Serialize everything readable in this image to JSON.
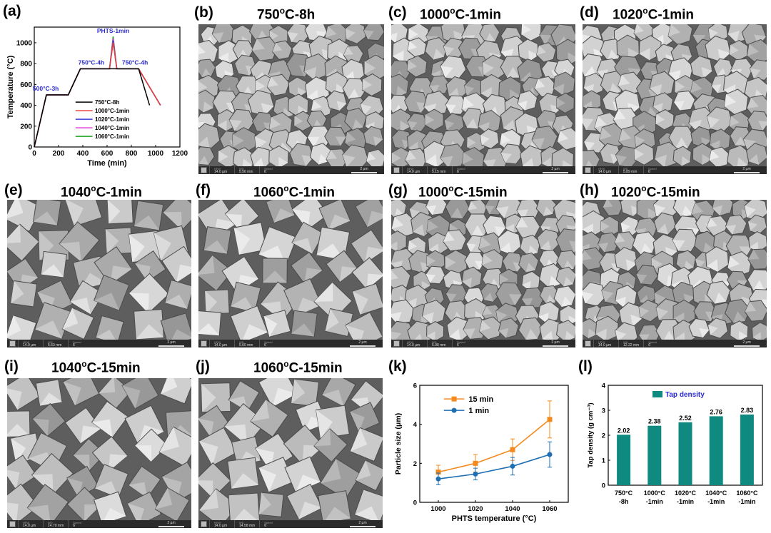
{
  "panels": {
    "a": {
      "label": "(a)"
    },
    "b": {
      "label": "(b)",
      "title": "750",
      "title_sup": "o",
      "title_rest": "C-8h"
    },
    "c": {
      "label": "(c)",
      "title": "1000",
      "title_sup": "o",
      "title_rest": "C-1min"
    },
    "d": {
      "label": "(d)",
      "title": "1020",
      "title_sup": "o",
      "title_rest": "C-1min"
    },
    "e": {
      "label": "(e)",
      "title": "1040",
      "title_sup": "o",
      "title_rest": "C-1min"
    },
    "f": {
      "label": "(f)",
      "title": "1060",
      "title_sup": "o",
      "title_rest": "C-1min"
    },
    "g": {
      "label": "(g)",
      "title": "1000",
      "title_sup": "o",
      "title_rest": "C-15min"
    },
    "h": {
      "label": "(h)",
      "title": "1020",
      "title_sup": "o",
      "title_rest": "C-15min"
    },
    "i": {
      "label": "(i)",
      "title": "1040",
      "title_sup": "o",
      "title_rest": "C-15min"
    },
    "j": {
      "label": "(j)",
      "title": "1060",
      "title_sup": "o",
      "title_rest": "C-15min"
    },
    "k": {
      "label": "(k)"
    },
    "l": {
      "label": "(l)"
    }
  },
  "sem_infobar": {
    "b": {
      "hfw": "14.0 µm",
      "wd": "5.56 mm",
      "speed": "6",
      "scale": "2 µm"
    },
    "c": {
      "hfw": "14.0 µm",
      "wd": "5.15 mm",
      "speed": "6",
      "scale": "2 µm"
    },
    "d": {
      "hfw": "14.0 µm",
      "wd": "5.89 mm",
      "speed": "6",
      "scale": "2 µm"
    },
    "e": {
      "hfw": "14.0 µm",
      "wd": "5.63 mm",
      "speed": "6",
      "scale": "2 µm"
    },
    "f": {
      "hfw": "14.0 µm",
      "wd": "5.60 mm",
      "speed": "6",
      "scale": "2 µm"
    },
    "g": {
      "hfw": "14.0 µm",
      "wd": "5.98 mm",
      "speed": "6",
      "scale": "2 µm"
    },
    "h": {
      "hfw": "14.0 µm",
      "wd": "12.22 mm",
      "speed": "6",
      "scale": "2 µm"
    },
    "i": {
      "hfw": "14.0 µm",
      "wd": "14.70 mm",
      "speed": "6",
      "scale": "2 µm"
    },
    "j": {
      "hfw": "14.0 µm",
      "wd": "14.58 mm",
      "speed": "6",
      "scale": "2 µm"
    },
    "keys": {
      "hfw": "HFW",
      "wd": "WD",
      "speed": "Speed"
    }
  },
  "chart_data": [
    {
      "id": "a",
      "type": "line",
      "xlabel": "Time (min)",
      "ylabel": "Temperature (°C)",
      "xlim": [
        0,
        1200
      ],
      "ylim": [
        0,
        1150
      ],
      "xticks": [
        0,
        200,
        400,
        600,
        800,
        1000,
        1200
      ],
      "yticks": [
        0,
        200,
        400,
        600,
        800,
        1000
      ],
      "annotations": [
        "PHTS-1min",
        "750°C-4h",
        "750°C-4h",
        "500°C-3h"
      ],
      "series": [
        {
          "name": "750°C-8h",
          "color": "#000000",
          "x": [
            0,
            100,
            280,
            380,
            860,
            950
          ],
          "y": [
            0,
            500,
            500,
            750,
            750,
            400
          ]
        },
        {
          "name": "1000°C-1min",
          "color": "#e8413c",
          "x": [
            0,
            100,
            280,
            380,
            620,
            650,
            680,
            860,
            1040
          ],
          "y": [
            0,
            500,
            500,
            750,
            750,
            1000,
            750,
            750,
            400
          ]
        },
        {
          "name": "1020°C-1min",
          "color": "#3a3ad8",
          "x": [
            0,
            100,
            280,
            380,
            620,
            650,
            680,
            860,
            1040
          ],
          "y": [
            0,
            500,
            500,
            750,
            750,
            1020,
            750,
            750,
            400
          ]
        },
        {
          "name": "1040°C-1min",
          "color": "#e040e0",
          "x": [
            0,
            100,
            280,
            380,
            620,
            650,
            680,
            860,
            1040
          ],
          "y": [
            0,
            500,
            500,
            750,
            750,
            1040,
            750,
            750,
            400
          ]
        },
        {
          "name": "1060°C-1min",
          "color": "#1ea31e",
          "x": [
            0,
            100,
            280,
            380,
            620,
            650,
            680,
            860,
            1040
          ],
          "y": [
            0,
            500,
            500,
            750,
            750,
            1060,
            750,
            750,
            400
          ]
        }
      ]
    },
    {
      "id": "k",
      "type": "line",
      "xlabel": "PHTS temperature (°C)",
      "ylabel": "Particle size (μm)",
      "xlim": [
        990,
        1070
      ],
      "ylim": [
        0,
        6
      ],
      "xticks": [
        1000,
        1020,
        1040,
        1060
      ],
      "yticks": [
        0,
        2,
        4,
        6
      ],
      "categories": [
        1000,
        1020,
        1040,
        1060
      ],
      "series": [
        {
          "name": "15 min",
          "color": "#f5891d",
          "marker": "square",
          "values": [
            1.55,
            2.0,
            2.7,
            4.25
          ],
          "errors": [
            0.35,
            0.45,
            0.55,
            0.95
          ]
        },
        {
          "name": "1 min",
          "color": "#1f6fb4",
          "marker": "circle",
          "values": [
            1.2,
            1.45,
            1.85,
            2.45
          ],
          "errors": [
            0.3,
            0.3,
            0.45,
            0.65
          ]
        }
      ]
    },
    {
      "id": "l",
      "type": "bar",
      "ylabel": "Tap density (g cm⁻³)",
      "ylim": [
        0,
        4
      ],
      "yticks": [
        0,
        1,
        2,
        3,
        4
      ],
      "legend": "Tap density",
      "color": "#0e8a80",
      "categories": [
        "750°C\n-8h",
        "1000°C\n-1min",
        "1020°C\n-1min",
        "1040°C\n-1min",
        "1060°C\n-1min"
      ],
      "values": [
        2.02,
        2.38,
        2.52,
        2.76,
        2.83
      ],
      "value_labels": [
        "2.02",
        "2.38",
        "2.52",
        "2.76",
        "2.83"
      ]
    }
  ]
}
